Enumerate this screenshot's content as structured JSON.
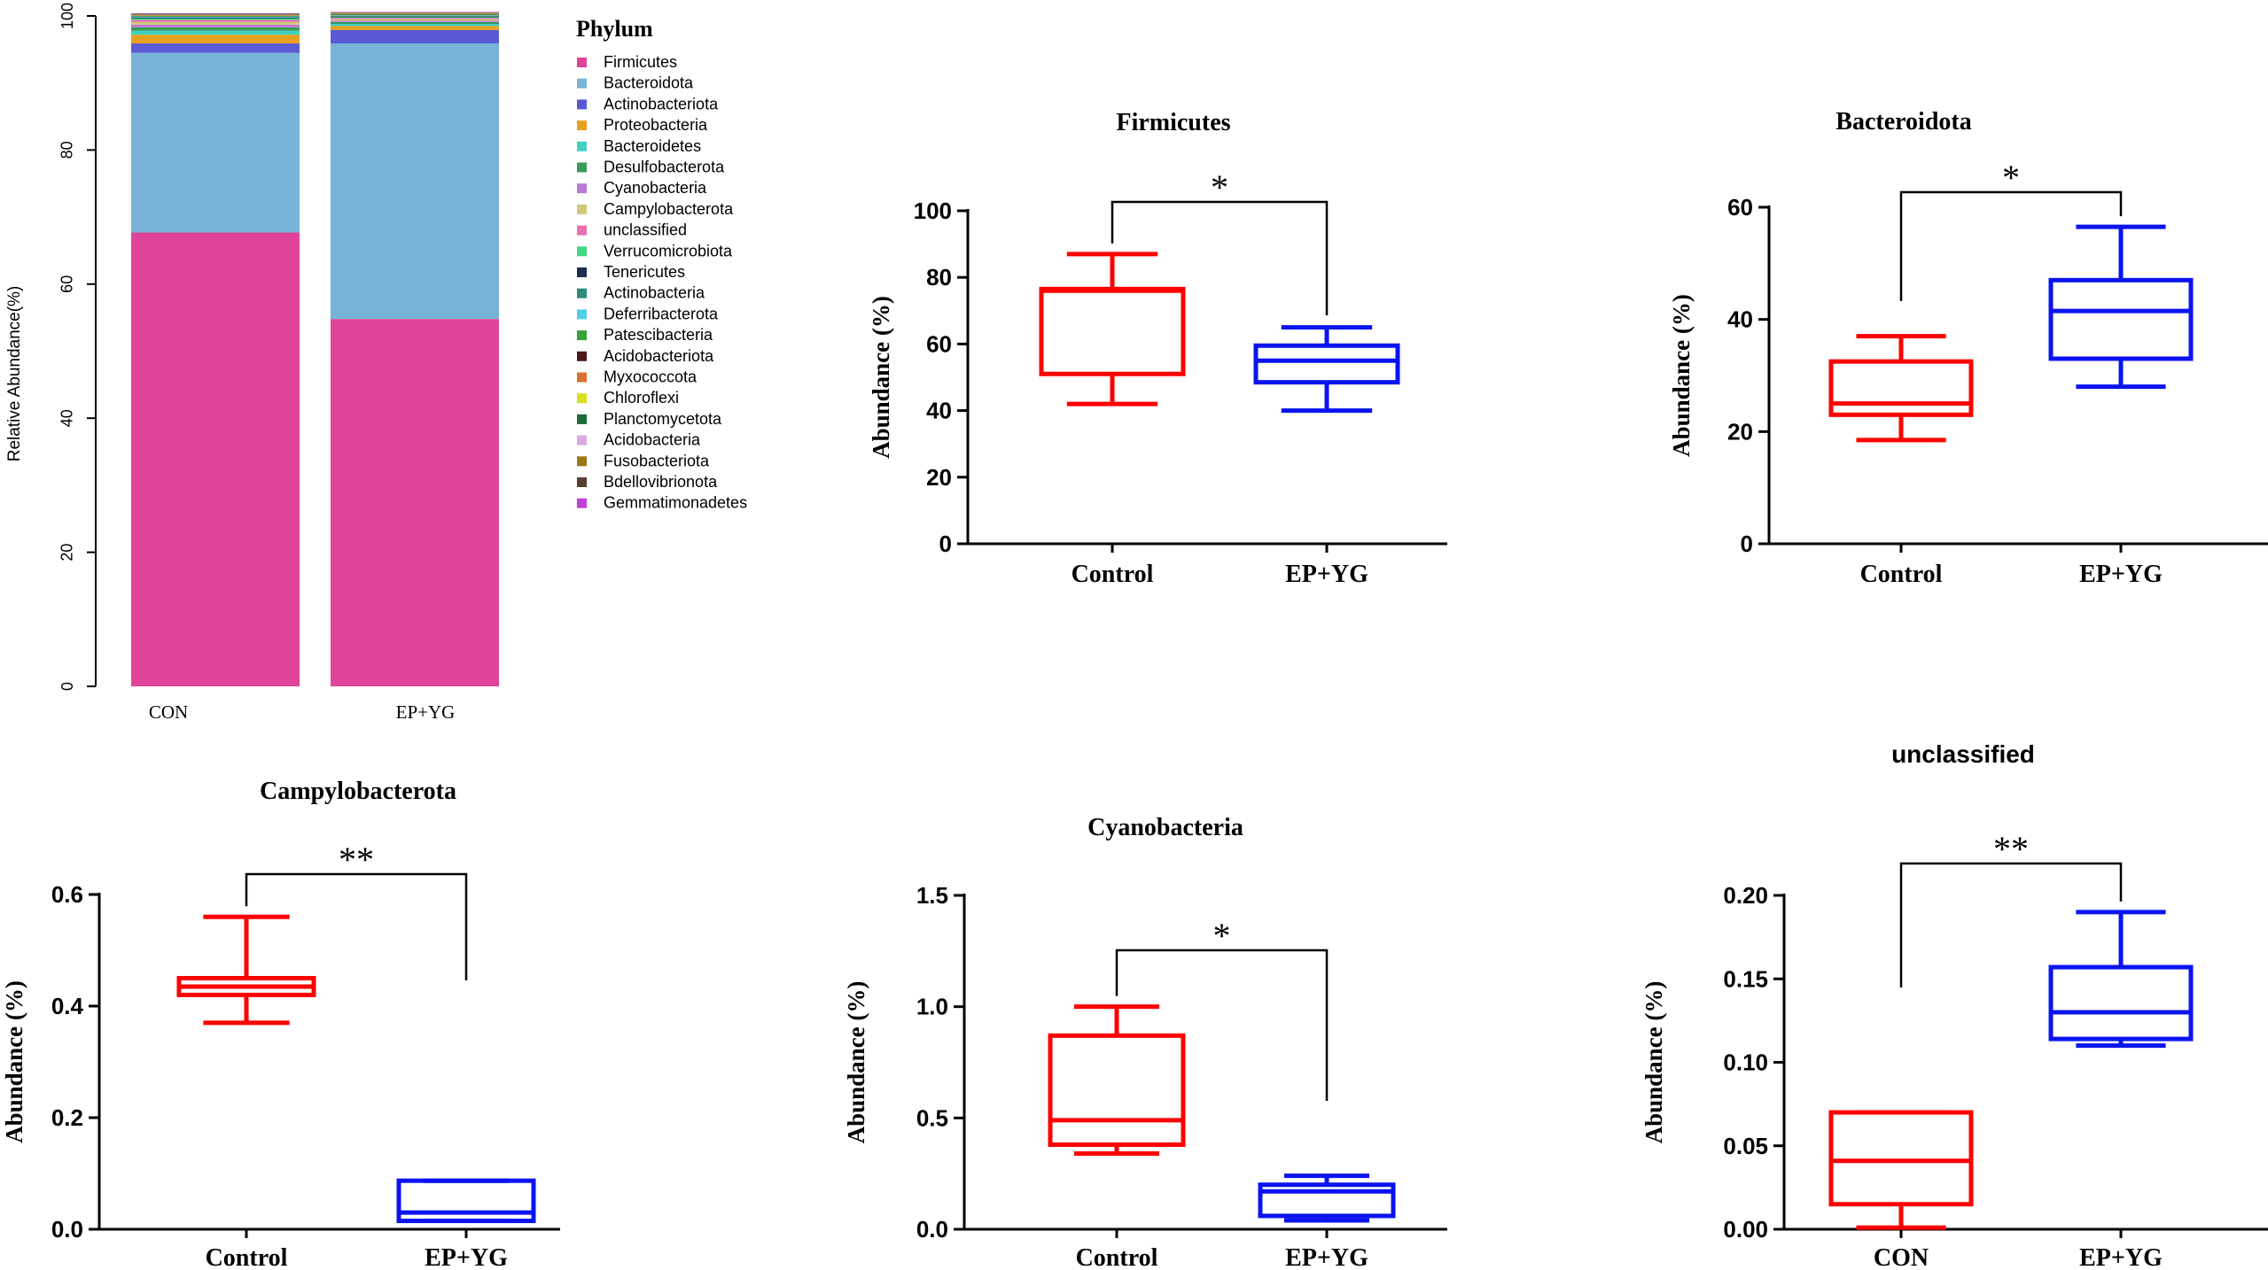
{
  "colors": {
    "control": "#ff0000",
    "treatment": "#0a14f0",
    "axis": "#000000"
  },
  "chart_data": [
    {
      "id": "stacked",
      "type": "bar",
      "stacked": true,
      "title": "",
      "ylabel": "Relative Abundance(%)",
      "xlabel": "",
      "ylim": [
        0,
        100
      ],
      "yticks": [
        "0",
        "20",
        "40",
        "60",
        "80",
        "100"
      ],
      "categories": [
        "CON",
        "EP+YG"
      ],
      "legend_title": "Phylum",
      "legend_position": "right",
      "series": [
        {
          "name": "Firmicutes",
          "color": "#e0449a",
          "values": [
            67.7,
            54.8
          ]
        },
        {
          "name": "Bacteroidota",
          "color": "#78b4d8",
          "values": [
            26.8,
            41.1
          ]
        },
        {
          "name": "Actinobacteriota",
          "color": "#5a5ad6",
          "values": [
            1.4,
            2.0
          ]
        },
        {
          "name": "Proteobacteria",
          "color": "#e8a020",
          "values": [
            1.3,
            0.6
          ]
        },
        {
          "name": "Bacteroidetes",
          "color": "#40d0c0",
          "values": [
            0.6,
            0.3
          ]
        },
        {
          "name": "Desulfobacterota",
          "color": "#3a9a5a",
          "values": [
            0.5,
            0.3
          ]
        },
        {
          "name": "Cyanobacteria",
          "color": "#b87ad6",
          "values": [
            0.4,
            0.2
          ]
        },
        {
          "name": "Campylobacterota",
          "color": "#d0c878",
          "values": [
            0.4,
            0.2
          ]
        },
        {
          "name": "unclassified",
          "color": "#e870b0",
          "values": [
            0.3,
            0.2
          ]
        },
        {
          "name": "Verrucomicrobiota",
          "color": "#40d888",
          "values": [
            0.2,
            0.1
          ]
        },
        {
          "name": "Tenericutes",
          "color": "#1e2e50",
          "values": [
            0.1,
            0.1
          ]
        },
        {
          "name": "Actinobacteria",
          "color": "#2e8c7a",
          "values": [
            0.1,
            0.1
          ]
        },
        {
          "name": "Deferribacterota",
          "color": "#50d0e8",
          "values": [
            0.1,
            0.1
          ]
        },
        {
          "name": "Patescibacteria",
          "color": "#38a038",
          "values": [
            0.1,
            0.1
          ]
        },
        {
          "name": "Acidobacteriota",
          "color": "#501818",
          "values": [
            0.05,
            0.05
          ]
        },
        {
          "name": "Myxococcota",
          "color": "#d87030",
          "values": [
            0.05,
            0.05
          ]
        },
        {
          "name": "Chloroflexi",
          "color": "#d8e020",
          "values": [
            0.05,
            0.05
          ]
        },
        {
          "name": "Planctomycetota",
          "color": "#1e6a3a",
          "values": [
            0.05,
            0.05
          ]
        },
        {
          "name": "Acidobacteria",
          "color": "#d8a8e0",
          "values": [
            0.05,
            0.05
          ]
        },
        {
          "name": "Fusobacteriota",
          "color": "#9a7818",
          "values": [
            0.05,
            0.05
          ]
        },
        {
          "name": "Bdellovibrionota",
          "color": "#5a4030",
          "values": [
            0.05,
            0.05
          ]
        },
        {
          "name": "Gemmatimonadetes",
          "color": "#c040d8",
          "values": [
            0.05,
            0.05
          ]
        }
      ]
    },
    {
      "id": "firmicutes",
      "type": "box",
      "title": "Firmicutes",
      "ylabel": "Abundance (%)",
      "ylim": [
        0,
        100
      ],
      "yticks": [
        "0",
        "20",
        "40",
        "60",
        "80",
        "100"
      ],
      "categories": [
        "Control",
        "EP+YG"
      ],
      "significance": "*",
      "boxes": [
        {
          "min": 42,
          "q1": 51,
          "median": 76,
          "q3": 76.5,
          "max": 87
        },
        {
          "min": 40,
          "q1": 48.5,
          "median": 55,
          "q3": 59.5,
          "max": 65
        }
      ]
    },
    {
      "id": "bacteroidota",
      "type": "box",
      "title": "Bacteroidota",
      "ylabel": "Abundance (%)",
      "ylim": [
        0,
        60
      ],
      "yticks": [
        "0",
        "20",
        "40",
        "60"
      ],
      "categories": [
        "Control",
        "EP+YG"
      ],
      "significance": "*",
      "boxes": [
        {
          "min": 18.5,
          "q1": 23,
          "median": 25,
          "q3": 32.5,
          "max": 37
        },
        {
          "min": 28,
          "q1": 33,
          "median": 41.5,
          "q3": 47,
          "max": 56.5
        }
      ]
    },
    {
      "id": "campylobacterota",
      "type": "box",
      "title": "Campylobacterota",
      "ylabel": "Abundance (%)",
      "ylim": [
        0,
        0.6
      ],
      "yticks": [
        "0.0",
        "0.2",
        "0.4",
        "0.6"
      ],
      "categories": [
        "Control",
        "EP+YG"
      ],
      "significance": "**",
      "boxes": [
        {
          "min": 0.37,
          "q1": 0.42,
          "median": 0.435,
          "q3": 0.45,
          "max": 0.56
        },
        {
          "min": 0.015,
          "q1": 0.015,
          "median": 0.03,
          "q3": 0.087,
          "max": 0.087
        }
      ]
    },
    {
      "id": "cyanobacteria",
      "type": "box",
      "title": "Cyanobacteria",
      "ylabel": "Abundance (%)",
      "ylim": [
        0,
        1.5
      ],
      "yticks": [
        "0.0",
        "0.5",
        "1.0",
        "1.5"
      ],
      "categories": [
        "Control",
        "EP+YG"
      ],
      "significance": "*",
      "boxes": [
        {
          "min": 0.34,
          "q1": 0.38,
          "median": 0.49,
          "q3": 0.87,
          "max": 1.0
        },
        {
          "min": 0.04,
          "q1": 0.06,
          "median": 0.17,
          "q3": 0.2,
          "max": 0.24
        }
      ]
    },
    {
      "id": "unclassified",
      "type": "box",
      "title": "unclassified",
      "ylabel": "Abundance (%)",
      "ylim": [
        0,
        0.2
      ],
      "yticks": [
        "0.00",
        "0.05",
        "0.10",
        "0.15",
        "0.20"
      ],
      "categories": [
        "CON",
        "EP+YG"
      ],
      "significance": "**",
      "boxes": [
        {
          "min": 0.001,
          "q1": 0.015,
          "median": 0.041,
          "q3": 0.07,
          "max": 0.07
        },
        {
          "min": 0.11,
          "q1": 0.114,
          "median": 0.13,
          "q3": 0.157,
          "max": 0.19
        }
      ]
    }
  ]
}
